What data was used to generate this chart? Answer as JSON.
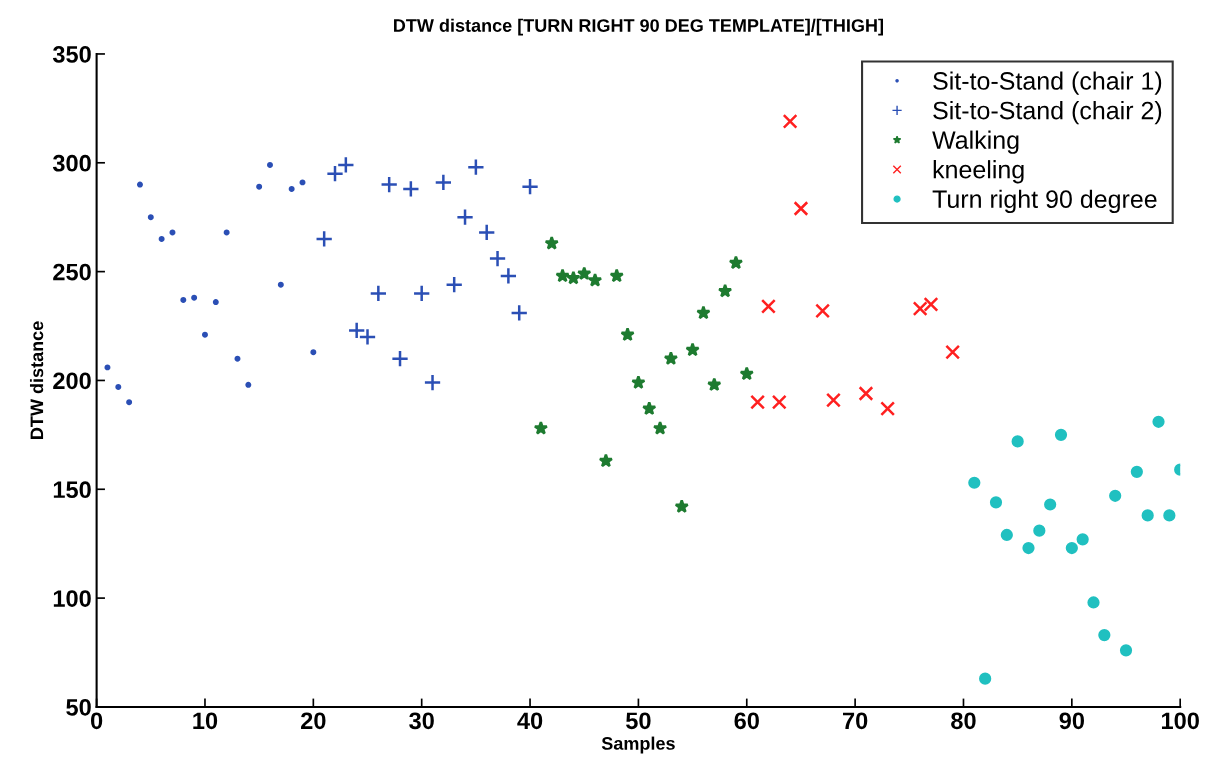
{
  "chart_data": {
    "type": "scatter",
    "title": "DTW distance [TURN RIGHT 90 DEG TEMPLATE]/[THIGH]",
    "xlabel": "Samples",
    "ylabel": "DTW distance",
    "xlim": [
      0,
      100
    ],
    "ylim": [
      50,
      350
    ],
    "xticks": [
      0,
      10,
      20,
      30,
      40,
      50,
      60,
      70,
      80,
      90,
      100
    ],
    "yticks": [
      50,
      100,
      150,
      200,
      250,
      300,
      350
    ],
    "grid": false,
    "legend": "top right",
    "series": [
      {
        "name": "Sit-to-Stand (chair 1)",
        "color": "#2b4fb5",
        "marker": "point",
        "x": [
          1,
          2,
          3,
          4,
          5,
          6,
          7,
          8,
          9,
          10,
          11,
          12,
          13,
          14,
          15,
          16,
          17,
          18,
          19,
          20
        ],
        "values": [
          206,
          197,
          190,
          290,
          275,
          265,
          268,
          237,
          238,
          221,
          236,
          268,
          210,
          198,
          289,
          299,
          244,
          288,
          291,
          213
        ]
      },
      {
        "name": "Sit-to-Stand (chair 2)",
        "color": "#2b4fb5",
        "marker": "plus",
        "x": [
          21,
          22,
          23,
          24,
          25,
          26,
          27,
          28,
          29,
          30,
          31,
          32,
          33,
          34,
          35,
          36,
          37,
          38,
          39,
          40
        ],
        "values": [
          265,
          295,
          299,
          223,
          220,
          240,
          290,
          210,
          288,
          240,
          199,
          291,
          244,
          275,
          298,
          268,
          256,
          248,
          231,
          289
        ]
      },
      {
        "name": "Walking",
        "color": "#1e7b30",
        "marker": "star",
        "x": [
          41,
          42,
          43,
          44,
          45,
          46,
          47,
          48,
          49,
          50,
          51,
          52,
          53,
          54,
          55,
          56,
          57,
          58,
          59,
          60
        ],
        "values": [
          178,
          263,
          248,
          247,
          249,
          246,
          163,
          248,
          221,
          199,
          187,
          178,
          210,
          142,
          214,
          231,
          198,
          241,
          254,
          203
        ]
      },
      {
        "name": "kneeling",
        "color": "#ff2020",
        "marker": "cross",
        "x": [
          61,
          62,
          63,
          64,
          65,
          67,
          68,
          71,
          73,
          76,
          77,
          79
        ],
        "values": [
          190,
          234,
          190,
          319,
          279,
          232,
          191,
          194,
          187,
          233,
          235,
          213
        ]
      },
      {
        "name": "Turn right 90 degree",
        "color": "#20c0c0",
        "marker": "circle",
        "x": [
          81,
          82,
          83,
          84,
          85,
          86,
          87,
          88,
          89,
          90,
          91,
          92,
          93,
          94,
          95,
          96,
          97,
          98,
          99,
          100
        ],
        "values": [
          153,
          63,
          144,
          129,
          172,
          123,
          131,
          143,
          175,
          123,
          127,
          98,
          83,
          147,
          76,
          158,
          138,
          181,
          138,
          159
        ]
      }
    ]
  }
}
